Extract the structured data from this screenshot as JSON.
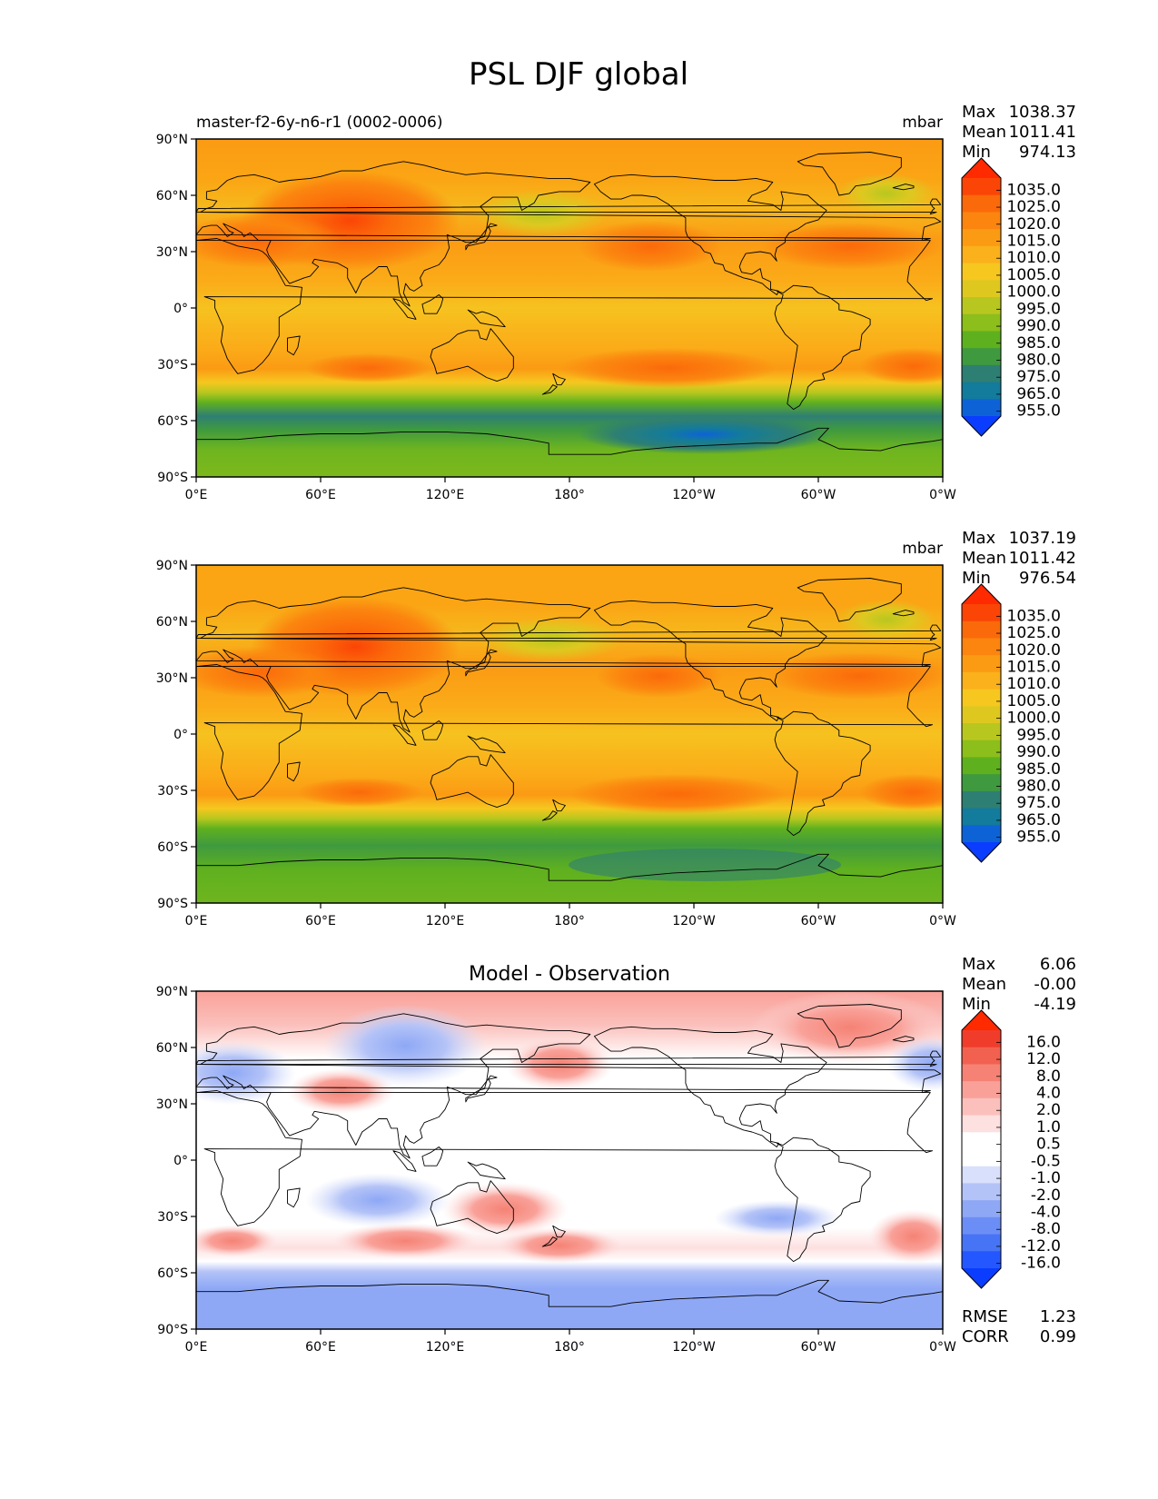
{
  "title": "PSL DJF global",
  "colors": {
    "cbar_psl": [
      "#0a3dff",
      "#0d63d6",
      "#137b9b",
      "#2e7f73",
      "#3f9a3f",
      "#5fb01f",
      "#8cbe1c",
      "#b8c71f",
      "#dec820",
      "#f6c71f",
      "#fbb11b",
      "#fb9b14",
      "#fb850f",
      "#fb6a0a",
      "#fb4506",
      "#ff2a00"
    ],
    "cbar_diff": [
      "#0a3dff",
      "#2457ff",
      "#4674f5",
      "#6b8ef6",
      "#8ea8f6",
      "#b4c3f7",
      "#d8e0fb",
      "#ffffff",
      "#ffffff",
      "#fde0e0",
      "#fbc0bc",
      "#f9a199",
      "#f58275",
      "#f26150",
      "#f03d2b",
      "#ff2a00"
    ],
    "land": "#000000"
  },
  "panels": [
    {
      "name": "model",
      "subtitle": "master-f2-6y-n6-r1 (0002-0006)",
      "center_title": "",
      "units": "mbar",
      "stats": {
        "max_label": "Max",
        "max": "1038.37",
        "mean_label": "Mean",
        "mean": "1011.41",
        "min_label": "Min",
        "min": "974.13"
      },
      "colorbar_labels": [
        "1035.0",
        "1025.0",
        "1020.0",
        "1015.0",
        "1010.0",
        "1005.0",
        "1000.0",
        "995.0",
        "990.0",
        "985.0",
        "980.0",
        "975.0",
        "965.0",
        "955.0"
      ],
      "extra": []
    },
    {
      "name": "observation",
      "subtitle": "",
      "center_title": "",
      "units": "mbar",
      "stats": {
        "max_label": "Max",
        "max": "1037.19",
        "mean_label": "Mean",
        "mean": "1011.42",
        "min_label": "Min",
        "min": "976.54"
      },
      "colorbar_labels": [
        "1035.0",
        "1025.0",
        "1020.0",
        "1015.0",
        "1010.0",
        "1005.0",
        "1000.0",
        "995.0",
        "990.0",
        "985.0",
        "980.0",
        "975.0",
        "965.0",
        "955.0"
      ],
      "extra": []
    },
    {
      "name": "difference",
      "subtitle": "",
      "center_title": "Model - Observation",
      "units": "",
      "stats": {
        "max_label": "Max",
        "max": "6.06",
        "mean_label": "Mean",
        "mean": "-0.00",
        "min_label": "Min",
        "min": "-4.19"
      },
      "colorbar_labels": [
        "16.0",
        "12.0",
        "8.0",
        "4.0",
        "2.0",
        "1.0",
        "0.5",
        "-0.5",
        "-1.0",
        "-2.0",
        "-4.0",
        "-8.0",
        "-12.0",
        "-16.0"
      ],
      "extra": [
        {
          "label": "RMSE",
          "value": "1.23"
        },
        {
          "label": "CORR",
          "value": "0.99"
        }
      ]
    }
  ],
  "axes": {
    "lat_ticks": [
      "90°N",
      "60°N",
      "30°N",
      "0°",
      "30°S",
      "60°S",
      "90°S"
    ],
    "lon_ticks": [
      "0°E",
      "60°E",
      "120°E",
      "180°",
      "120°W",
      "60°W",
      "0°W"
    ]
  }
}
